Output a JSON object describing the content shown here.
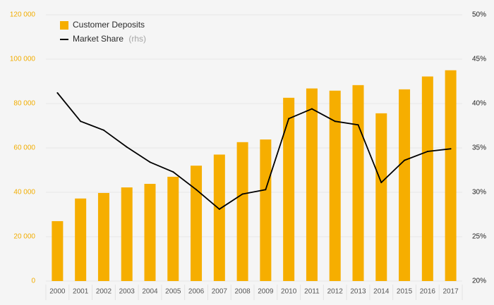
{
  "chart_data": {
    "type": "bar",
    "categories": [
      "2000",
      "2001",
      "2002",
      "2003",
      "2004",
      "2005",
      "2006",
      "2007",
      "2008",
      "2009",
      "2010",
      "2011",
      "2012",
      "2013",
      "2014",
      "2015",
      "2016",
      "2017"
    ],
    "series": [
      {
        "name": "Customer Deposits",
        "type": "bar",
        "axis": "left",
        "color": "#f6ae00",
        "values": [
          27000,
          37200,
          39700,
          42200,
          43800,
          47000,
          52000,
          57000,
          62600,
          63800,
          82600,
          86800,
          85800,
          88300,
          75600,
          86400,
          92200,
          95000
        ]
      },
      {
        "name": "Market Share",
        "type": "line",
        "axis": "right",
        "color": "#000000",
        "values": [
          41.2,
          38.0,
          37.0,
          35.1,
          33.4,
          32.3,
          30.3,
          28.1,
          29.8,
          30.3,
          38.3,
          39.4,
          38.0,
          37.6,
          31.1,
          33.6,
          34.6,
          34.9
        ]
      }
    ],
    "axes": {
      "y_left": {
        "min": 0,
        "max": 120000,
        "ticks": [
          0,
          20000,
          40000,
          60000,
          80000,
          100000,
          120000
        ],
        "tick_labels": [
          "0",
          "20 000",
          "40 000",
          "60 000",
          "80 000",
          "100 000",
          "120 000"
        ],
        "color": "#f2ad00"
      },
      "y_right": {
        "min": 20,
        "max": 50,
        "ticks": [
          20,
          25,
          30,
          35,
          40,
          45,
          50
        ],
        "tick_labels": [
          "20%",
          "25%",
          "30%",
          "35%",
          "40%",
          "45%",
          "50%"
        ],
        "color": "#222222"
      }
    },
    "legend": {
      "position": "top-left",
      "items": [
        {
          "label": "Customer Deposits",
          "suffix": "",
          "symbol": "bar",
          "color": "#f6ae00"
        },
        {
          "label": "Market Share",
          "suffix": "(rhs)",
          "symbol": "line",
          "color": "#000000"
        }
      ]
    },
    "title": "",
    "xlabel": "",
    "ylabel": "",
    "grid": true
  }
}
